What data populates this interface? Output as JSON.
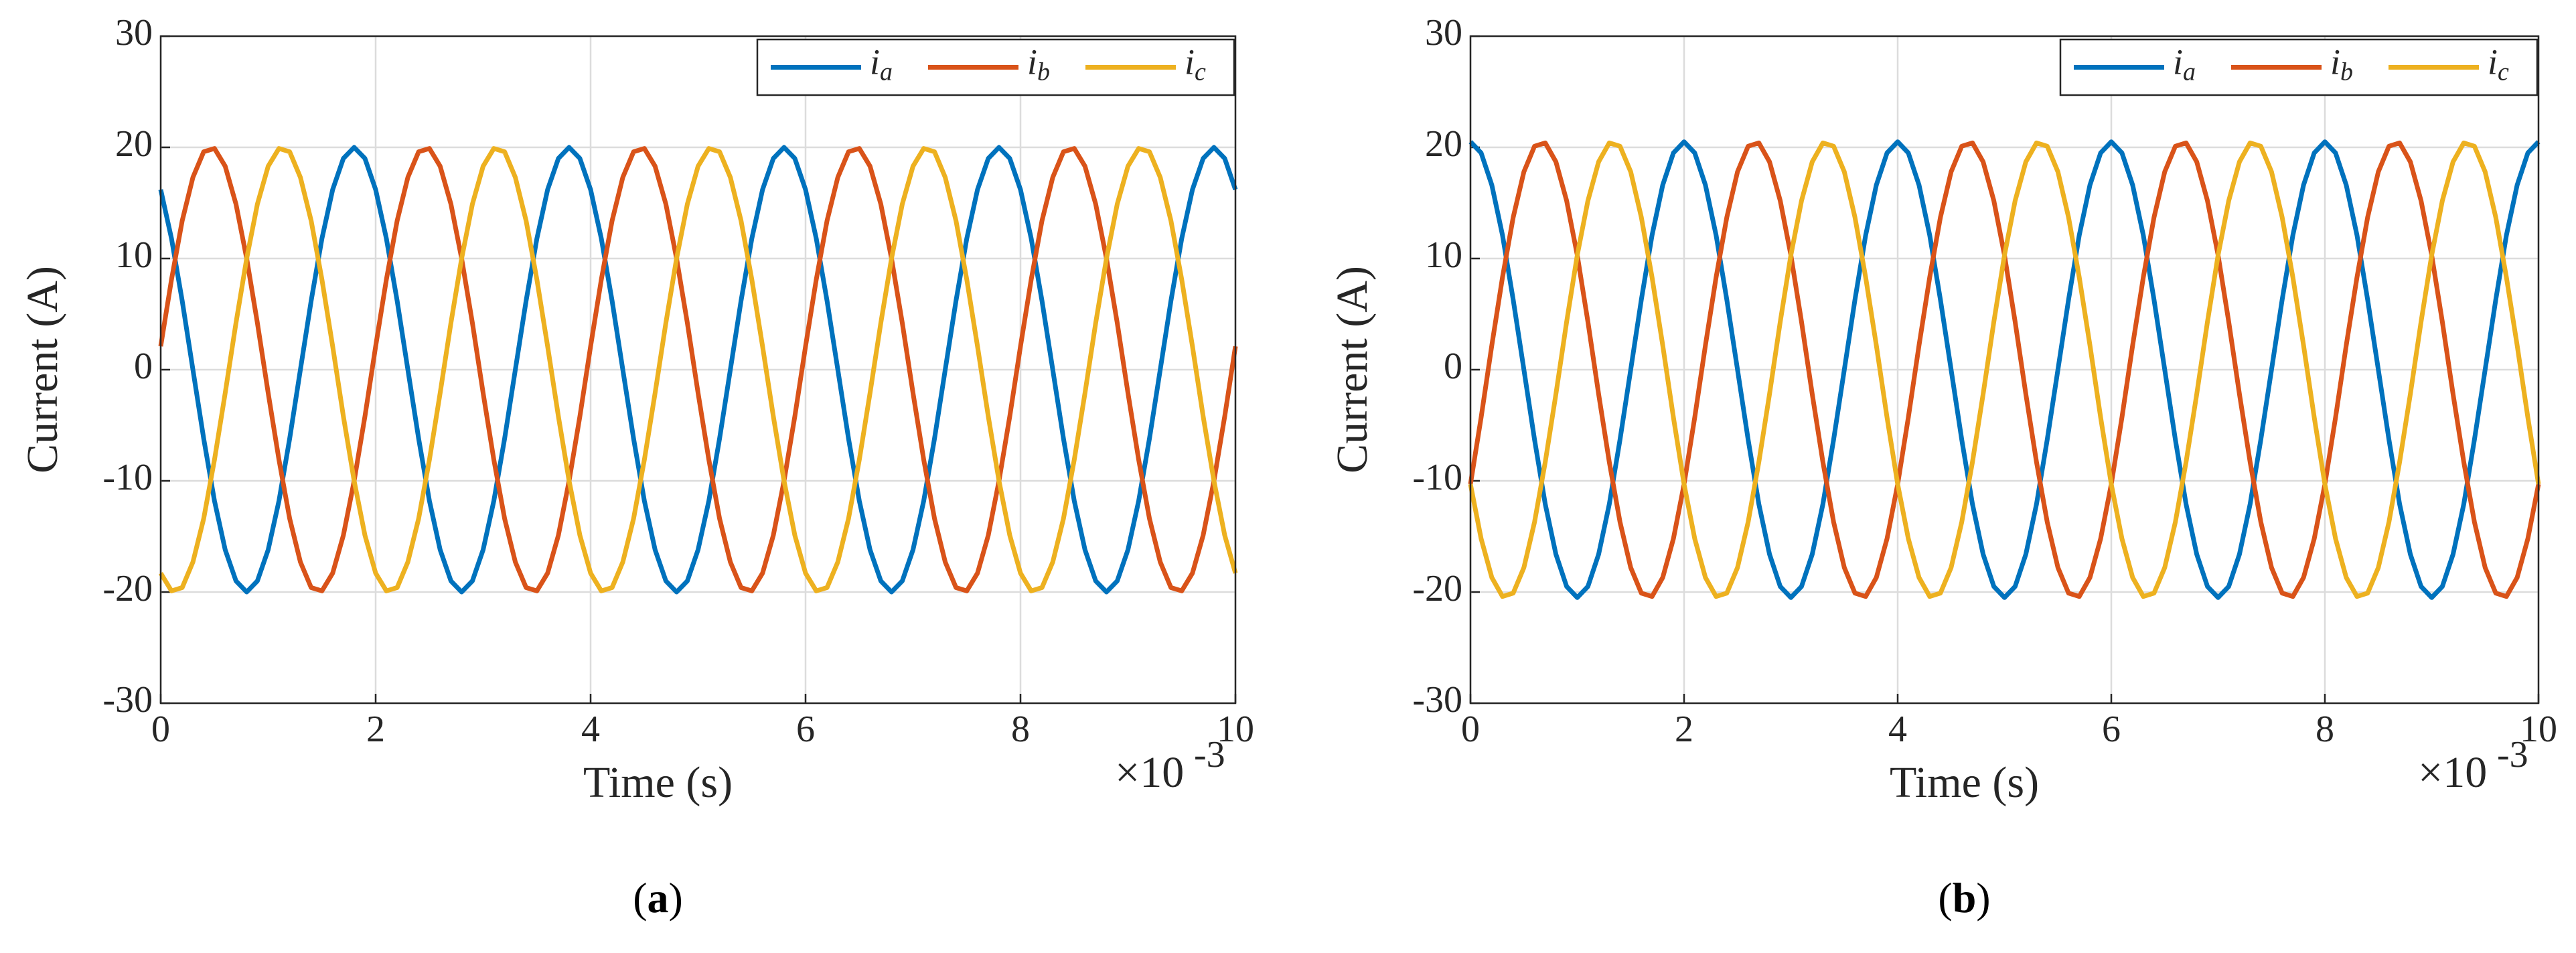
{
  "chart_data": [
    {
      "type": "line",
      "caption": "(a)",
      "xlabel": "Time (s)",
      "ylabel": "Current (A)",
      "x_scale": {
        "base": "×10",
        "exponent": "-3"
      },
      "xlim": [
        0,
        10
      ],
      "ylim": [
        -30,
        30
      ],
      "xticks": [
        0,
        2,
        4,
        6,
        8,
        10
      ],
      "yticks": [
        -30,
        -20,
        -10,
        0,
        10,
        20,
        30
      ],
      "grid": true,
      "legend": "upper right",
      "x": [
        0,
        0.1,
        0.2,
        0.3,
        0.4,
        0.5,
        0.6,
        0.7,
        0.8,
        0.9,
        1,
        1.1,
        1.2,
        1.3,
        1.4,
        1.5,
        1.6,
        1.7,
        1.8,
        1.9,
        2,
        2.1,
        2.2,
        2.3,
        2.4,
        2.5,
        2.6,
        2.7,
        2.8,
        2.9,
        3,
        3.1,
        3.2,
        3.3,
        3.4,
        3.5,
        3.6,
        3.7,
        3.8,
        3.9,
        4,
        4.1,
        4.2,
        4.3,
        4.4,
        4.5,
        4.6,
        4.7,
        4.8,
        4.9,
        5,
        5.1,
        5.2,
        5.3,
        5.4,
        5.5,
        5.6,
        5.7,
        5.8,
        5.9,
        6,
        6.1,
        6.2,
        6.3,
        6.4,
        6.5,
        6.6,
        6.7,
        6.8,
        6.9,
        7,
        7.1,
        7.2,
        7.3,
        7.4,
        7.5,
        7.6,
        7.7,
        7.8,
        7.9,
        8,
        8.1,
        8.2,
        8.3,
        8.4,
        8.5,
        8.6,
        8.7,
        8.8,
        8.9,
        9,
        9.1,
        9.2,
        9.3,
        9.4,
        9.5,
        9.6,
        9.7,
        9.8,
        9.9,
        10
      ],
      "series": [
        {
          "name": "ia",
          "color": "#0072BD",
          "values": [
            16.2,
            11.8,
            6.2,
            0,
            -6.2,
            -11.8,
            -16.2,
            -19,
            -20,
            -19,
            -16.2,
            -11.8,
            -6.2,
            0,
            6.2,
            11.8,
            16.2,
            19,
            20,
            19,
            16.2,
            11.8,
            6.2,
            0,
            -6.2,
            -11.8,
            -16.2,
            -19,
            -20,
            -19,
            -16.2,
            -11.8,
            -6.2,
            0,
            6.2,
            11.8,
            16.2,
            19,
            20,
            19,
            16.2,
            11.8,
            6.2,
            0,
            -6.2,
            -11.8,
            -16.2,
            -19,
            -20,
            -19,
            -16.2,
            -11.8,
            -6.2,
            0,
            6.2,
            11.8,
            16.2,
            19,
            20,
            19,
            16.2,
            11.8,
            6.2,
            0,
            -6.2,
            -11.8,
            -16.2,
            -19,
            -20,
            -19,
            -16.2,
            -11.8,
            -6.2,
            0,
            6.2,
            11.8,
            16.2,
            19,
            20,
            19,
            16.2,
            11.8,
            6.2,
            0,
            -6.2,
            -11.8,
            -16.2,
            -19,
            -20,
            -19,
            -16.2,
            -11.8,
            -6.2,
            0,
            6.2,
            11.8,
            16.2,
            19,
            20,
            19,
            16.2
          ]
        },
        {
          "name": "ib",
          "color": "#D95319",
          "values": [
            2.1,
            8.1,
            13.4,
            17.3,
            19.6,
            19.9,
            18.3,
            14.9,
            10,
            4.2,
            -2.1,
            -8.1,
            -13.4,
            -17.3,
            -19.6,
            -19.9,
            -18.3,
            -14.9,
            -10,
            -4.2,
            2.1,
            8.1,
            13.4,
            17.3,
            19.6,
            19.9,
            18.3,
            14.9,
            10,
            4.2,
            -2.1,
            -8.1,
            -13.4,
            -17.3,
            -19.6,
            -19.9,
            -18.3,
            -14.9,
            -10,
            -4.2,
            2.1,
            8.1,
            13.4,
            17.3,
            19.6,
            19.9,
            18.3,
            14.9,
            10,
            4.2,
            -2.1,
            -8.1,
            -13.4,
            -17.3,
            -19.6,
            -19.9,
            -18.3,
            -14.9,
            -10,
            -4.2,
            2.1,
            8.1,
            13.4,
            17.3,
            19.6,
            19.9,
            18.3,
            14.9,
            10,
            4.2,
            -2.1,
            -8.1,
            -13.4,
            -17.3,
            -19.6,
            -19.9,
            -18.3,
            -14.9,
            -10,
            -4.2,
            2.1,
            8.1,
            13.4,
            17.3,
            19.6,
            19.9,
            18.3,
            14.9,
            10,
            4.2,
            -2.1,
            -8.1,
            -13.4,
            -17.3,
            -19.6,
            -19.9,
            -18.3,
            -14.9,
            -10,
            -4.2,
            2.1
          ]
        },
        {
          "name": "ic",
          "color": "#EDB120",
          "values": [
            -18.3,
            -19.9,
            -19.6,
            -17.3,
            -13.4,
            -8.1,
            -2.1,
            4.2,
            10,
            14.9,
            18.3,
            19.9,
            19.6,
            17.3,
            13.4,
            8.1,
            2.1,
            -4.2,
            -10,
            -14.9,
            -18.3,
            -19.9,
            -19.6,
            -17.3,
            -13.4,
            -8.1,
            -2.1,
            4.2,
            10,
            14.9,
            18.3,
            19.9,
            19.6,
            17.3,
            13.4,
            8.1,
            2.1,
            -4.2,
            -10,
            -14.9,
            -18.3,
            -19.9,
            -19.6,
            -17.3,
            -13.4,
            -8.1,
            -2.1,
            4.2,
            10,
            14.9,
            18.3,
            19.9,
            19.6,
            17.3,
            13.4,
            8.1,
            2.1,
            -4.2,
            -10,
            -14.9,
            -18.3,
            -19.9,
            -19.6,
            -17.3,
            -13.4,
            -8.1,
            -2.1,
            4.2,
            10,
            14.9,
            18.3,
            19.9,
            19.6,
            17.3,
            13.4,
            8.1,
            2.1,
            -4.2,
            -10,
            -14.9,
            -18.3,
            -19.9,
            -19.6,
            -17.3,
            -13.4,
            -8.1,
            -2.1,
            4.2,
            10,
            14.9,
            18.3,
            19.9,
            19.6,
            17.3,
            13.4,
            8.1,
            2.1,
            -4.2,
            -10,
            -14.9,
            -18.3
          ]
        }
      ]
    },
    {
      "type": "line",
      "caption": "(b)",
      "xlabel": "Time (s)",
      "ylabel": "Current (A)",
      "x_scale": {
        "base": "×10",
        "exponent": "-3"
      },
      "xlim": [
        0,
        10
      ],
      "ylim": [
        -30,
        30
      ],
      "xticks": [
        0,
        2,
        4,
        6,
        8,
        10
      ],
      "yticks": [
        -30,
        -20,
        -10,
        0,
        10,
        20,
        30
      ],
      "grid": true,
      "legend": "upper right",
      "x": [
        0,
        0.1,
        0.2,
        0.3,
        0.4,
        0.5,
        0.6,
        0.7,
        0.8,
        0.9,
        1,
        1.1,
        1.2,
        1.3,
        1.4,
        1.5,
        1.6,
        1.7,
        1.8,
        1.9,
        2,
        2.1,
        2.2,
        2.3,
        2.4,
        2.5,
        2.6,
        2.7,
        2.8,
        2.9,
        3,
        3.1,
        3.2,
        3.3,
        3.4,
        3.5,
        3.6,
        3.7,
        3.8,
        3.9,
        4,
        4.1,
        4.2,
        4.3,
        4.4,
        4.5,
        4.6,
        4.7,
        4.8,
        4.9,
        5,
        5.1,
        5.2,
        5.3,
        5.4,
        5.5,
        5.6,
        5.7,
        5.8,
        5.9,
        6,
        6.1,
        6.2,
        6.3,
        6.4,
        6.5,
        6.6,
        6.7,
        6.8,
        6.9,
        7,
        7.1,
        7.2,
        7.3,
        7.4,
        7.5,
        7.6,
        7.7,
        7.8,
        7.9,
        8,
        8.1,
        8.2,
        8.3,
        8.4,
        8.5,
        8.6,
        8.7,
        8.8,
        8.9,
        9,
        9.1,
        9.2,
        9.3,
        9.4,
        9.5,
        9.6,
        9.7,
        9.8,
        9.9,
        10
      ],
      "series": [
        {
          "name": "ia",
          "color": "#0072BD",
          "values": [
            20.5,
            19.5,
            16.6,
            12.1,
            6.3,
            0,
            -6.3,
            -12.1,
            -16.6,
            -19.5,
            -20.5,
            -19.5,
            -16.6,
            -12.1,
            -6.3,
            0,
            6.3,
            12.1,
            16.6,
            19.5,
            20.5,
            19.5,
            16.6,
            12.1,
            6.3,
            0,
            -6.3,
            -12.1,
            -16.6,
            -19.5,
            -20.5,
            -19.5,
            -16.6,
            -12.1,
            -6.3,
            0,
            6.3,
            12.1,
            16.6,
            19.5,
            20.5,
            19.5,
            16.6,
            12.1,
            6.3,
            0,
            -6.3,
            -12.1,
            -16.6,
            -19.5,
            -20.5,
            -19.5,
            -16.6,
            -12.1,
            -6.3,
            0,
            6.3,
            12.1,
            16.6,
            19.5,
            20.5,
            19.5,
            16.6,
            12.1,
            6.3,
            0,
            -6.3,
            -12.1,
            -16.6,
            -19.5,
            -20.5,
            -19.5,
            -16.6,
            -12.1,
            -6.3,
            0,
            6.3,
            12.1,
            16.6,
            19.5,
            20.5,
            19.5,
            16.6,
            12.1,
            6.3,
            0,
            -6.3,
            -12.1,
            -16.6,
            -19.5,
            -20.5,
            -19.5,
            -16.6,
            -12.1,
            -6.3,
            0,
            6.3,
            12.1,
            16.6,
            19.5,
            20.5
          ]
        },
        {
          "name": "ib",
          "color": "#D95319",
          "values": [
            -10.3,
            -4.3,
            2.2,
            8.3,
            13.7,
            17.8,
            20.1,
            20.4,
            18.7,
            15.2,
            10.3,
            4.3,
            -2.2,
            -8.3,
            -13.7,
            -17.8,
            -20.1,
            -20.4,
            -18.7,
            -15.2,
            -10.3,
            -4.3,
            2.2,
            8.3,
            13.7,
            17.8,
            20.1,
            20.4,
            18.7,
            15.2,
            10.3,
            4.3,
            -2.2,
            -8.3,
            -13.7,
            -17.8,
            -20.1,
            -20.4,
            -18.7,
            -15.2,
            -10.3,
            -4.3,
            2.2,
            8.3,
            13.7,
            17.8,
            20.1,
            20.4,
            18.7,
            15.2,
            10.3,
            4.3,
            -2.2,
            -8.3,
            -13.7,
            -17.8,
            -20.1,
            -20.4,
            -18.7,
            -15.2,
            -10.3,
            -4.3,
            2.2,
            8.3,
            13.7,
            17.8,
            20.1,
            20.4,
            18.7,
            15.2,
            10.3,
            4.3,
            -2.2,
            -8.3,
            -13.7,
            -17.8,
            -20.1,
            -20.4,
            -18.7,
            -15.2,
            -10.3,
            -4.3,
            2.2,
            8.3,
            13.7,
            17.8,
            20.1,
            20.4,
            18.7,
            15.2,
            10.3,
            4.3,
            -2.2,
            -8.3,
            -13.7,
            -17.8,
            -20.1,
            -20.4,
            -18.7,
            -15.2,
            -10.3
          ]
        },
        {
          "name": "ic",
          "color": "#EDB120",
          "values": [
            -10.3,
            -15.2,
            -18.7,
            -20.4,
            -20.1,
            -17.8,
            -13.7,
            -8.3,
            -2.2,
            4.3,
            10.3,
            15.2,
            18.7,
            20.4,
            20.1,
            17.8,
            13.7,
            8.3,
            2.2,
            -4.3,
            -10.3,
            -15.2,
            -18.7,
            -20.4,
            -20.1,
            -17.8,
            -13.7,
            -8.3,
            -2.2,
            4.3,
            10.3,
            15.2,
            18.7,
            20.4,
            20.1,
            17.8,
            13.7,
            8.3,
            2.2,
            -4.3,
            -10.3,
            -15.2,
            -18.7,
            -20.4,
            -20.1,
            -17.8,
            -13.7,
            -8.3,
            -2.2,
            4.3,
            10.3,
            15.2,
            18.7,
            20.4,
            20.1,
            17.8,
            13.7,
            8.3,
            2.2,
            -4.3,
            -10.3,
            -15.2,
            -18.7,
            -20.4,
            -20.1,
            -17.8,
            -13.7,
            -8.3,
            -2.2,
            4.3,
            10.3,
            15.2,
            18.7,
            20.4,
            20.1,
            17.8,
            13.7,
            8.3,
            2.2,
            -4.3,
            -10.3,
            -15.2,
            -18.7,
            -20.4,
            -20.1,
            -17.8,
            -13.7,
            -8.3,
            -2.2,
            4.3,
            10.3,
            15.2,
            18.7,
            20.4,
            20.1,
            17.8,
            13.7,
            8.3,
            2.2,
            -4.3,
            -10.3
          ]
        }
      ]
    }
  ]
}
